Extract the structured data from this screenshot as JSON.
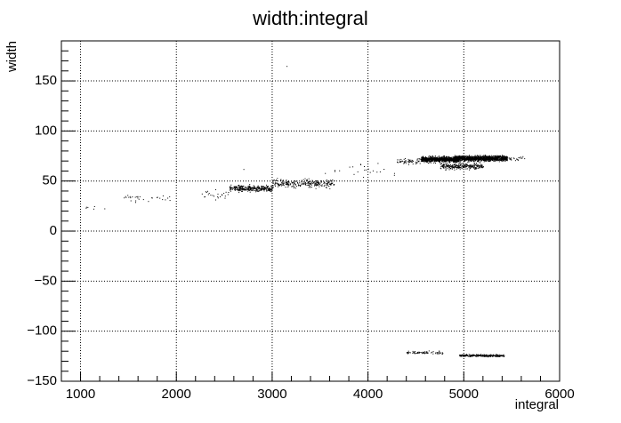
{
  "chart_data": {
    "type": "scatter",
    "title": "width:integral",
    "xlabel": "integral",
    "ylabel": "width",
    "xlim": [
      800,
      6000
    ],
    "ylim": [
      -150,
      190
    ],
    "xticks": [
      1000,
      2000,
      3000,
      4000,
      5000,
      6000
    ],
    "yticks": [
      -150,
      -100,
      -50,
      0,
      50,
      100,
      150
    ],
    "grid": true,
    "marker_color": "#000000",
    "series": [
      {
        "clusters": [
          {
            "x_range": [
              1050,
              1250
            ],
            "y_center": 23,
            "y_spread": 3,
            "count": 6
          },
          {
            "x_range": [
              1400,
              1950
            ],
            "y_center": 33,
            "y_spread": 4,
            "count": 30
          },
          {
            "x_range": [
              2250,
              2550
            ],
            "y_center": 37,
            "y_spread": 6,
            "count": 25
          },
          {
            "x_range": [
              2550,
              3000
            ],
            "y_center": 43,
            "y_spread": 3,
            "count": 320
          },
          {
            "x_range": [
              3000,
              3650
            ],
            "y_center": 48,
            "y_spread": 4,
            "count": 260
          },
          {
            "x_range": [
              3650,
              4300
            ],
            "y_center": 62,
            "y_spread": 6,
            "count": 20
          },
          {
            "x_range": [
              4300,
              4550
            ],
            "y_center": 70,
            "y_spread": 3,
            "count": 60
          },
          {
            "x_range": [
              4550,
              4950
            ],
            "y_center": 72,
            "y_spread": 2.5,
            "count": 900
          },
          {
            "x_range": [
              4900,
              5450
            ],
            "y_center": 73,
            "y_spread": 2.5,
            "count": 1100
          },
          {
            "x_range": [
              4750,
              5200
            ],
            "y_center": 65,
            "y_spread": 3,
            "count": 260
          },
          {
            "x_range": [
              5400,
              5650
            ],
            "y_center": 73,
            "y_spread": 2,
            "count": 25
          },
          {
            "x_range": [
              4400,
              4800
            ],
            "y_center": -121,
            "y_spread": 1.5,
            "count": 70
          },
          {
            "x_range": [
              4950,
              5420
            ],
            "y_center": -124,
            "y_spread": 1,
            "count": 260
          }
        ],
        "outliers": [
          [
            3150,
            165
          ],
          [
            3050,
            53
          ],
          [
            3850,
            57
          ],
          [
            3550,
            58
          ],
          [
            2700,
            62
          ],
          [
            4100,
            68
          ]
        ]
      }
    ]
  }
}
